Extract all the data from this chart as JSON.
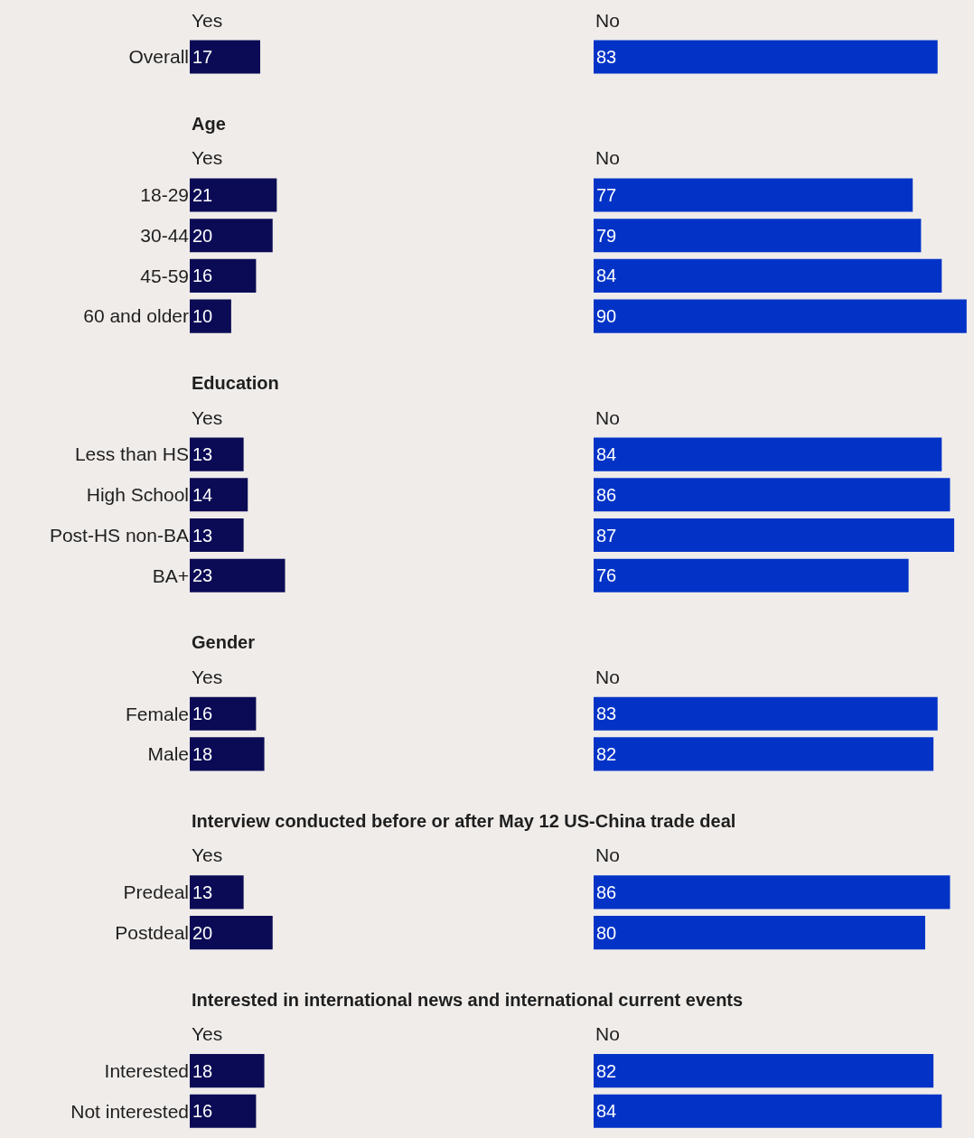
{
  "chart_data": [
    {
      "type": "bar",
      "orientation": "horizontal",
      "categories": [
        "Overall"
      ],
      "tick_labels": "y",
      "data_labels": true,
      "series": [
        {
          "name": "Yes",
          "color": "#0b0b55",
          "values": [
            17
          ]
        }
      ]
    },
    {
      "type": "bar",
      "orientation": "horizontal",
      "categories": [
        null
      ],
      "tick_labels": false,
      "data_labels": true,
      "series": [
        {
          "name": "No",
          "color": "#0233c6",
          "values": [
            83
          ]
        }
      ]
    },
    {
      "type": "bar",
      "orientation": "horizontal",
      "title": "Age",
      "categories": [
        "18-29",
        "30-44",
        "45-59",
        "60 and older"
      ],
      "tick_labels": "y",
      "data_labels": true,
      "series": [
        {
          "name": "Yes",
          "color": "#0b0b55",
          "values": [
            21,
            20,
            16,
            10
          ]
        }
      ]
    },
    {
      "type": "bar",
      "orientation": "horizontal",
      "categories": [
        null,
        null,
        null,
        null
      ],
      "tick_labels": false,
      "data_labels": true,
      "series": [
        {
          "name": "No",
          "color": "#0233c6",
          "values": [
            77,
            79,
            84,
            90
          ]
        }
      ]
    },
    {
      "type": "bar",
      "orientation": "horizontal",
      "title": "Education",
      "categories": [
        "Less than HS",
        "High School",
        "Post-HS non-BA",
        "BA+"
      ],
      "tick_labels": "y",
      "data_labels": true,
      "series": [
        {
          "name": "Yes",
          "color": "#0b0b55",
          "values": [
            13,
            14,
            13,
            23
          ]
        }
      ]
    },
    {
      "type": "bar",
      "orientation": "horizontal",
      "categories": [
        null,
        null,
        null,
        null
      ],
      "tick_labels": false,
      "data_labels": true,
      "series": [
        {
          "name": "No",
          "color": "#0233c6",
          "values": [
            84,
            86,
            87,
            76
          ]
        }
      ]
    },
    {
      "type": "bar",
      "orientation": "horizontal",
      "title": "Gender",
      "categories": [
        "Female",
        "Male"
      ],
      "tick_labels": "y",
      "data_labels": true,
      "series": [
        {
          "name": "Yes",
          "color": "#0b0b55",
          "values": [
            16,
            18
          ]
        }
      ]
    },
    {
      "type": "bar",
      "orientation": "horizontal",
      "categories": [
        null,
        null
      ],
      "tick_labels": false,
      "data_labels": true,
      "series": [
        {
          "name": "No",
          "color": "#0233c6",
          "values": [
            83,
            82
          ]
        }
      ]
    },
    {
      "type": "bar",
      "orientation": "horizontal",
      "title": "Interview conducted before or after May 12 US-China trade deal",
      "categories": [
        "Predeal",
        "Postdeal"
      ],
      "tick_labels": "y",
      "data_labels": true,
      "series": [
        {
          "name": "Yes",
          "color": "#0b0b55",
          "values": [
            13,
            20
          ]
        }
      ]
    },
    {
      "type": "bar",
      "orientation": "horizontal",
      "categories": [
        null,
        null
      ],
      "tick_labels": false,
      "data_labels": true,
      "series": [
        {
          "name": "No",
          "color": "#0233c6",
          "values": [
            86,
            80
          ]
        }
      ]
    },
    {
      "type": "bar",
      "orientation": "horizontal",
      "title": "Interested in international news and international current events",
      "categories": [
        "Interested",
        "Not interested"
      ],
      "tick_labels": "y",
      "data_labels": true,
      "series": [
        {
          "name": "Yes",
          "color": "#0b0b55",
          "values": [
            18,
            16
          ]
        }
      ]
    },
    {
      "type": "bar",
      "orientation": "horizontal",
      "categories": [
        null,
        null
      ],
      "tick_labels": false,
      "data_labels": true,
      "series": [
        {
          "name": "No",
          "color": "#0233c6",
          "values": [
            82,
            84
          ]
        }
      ]
    }
  ]
}
